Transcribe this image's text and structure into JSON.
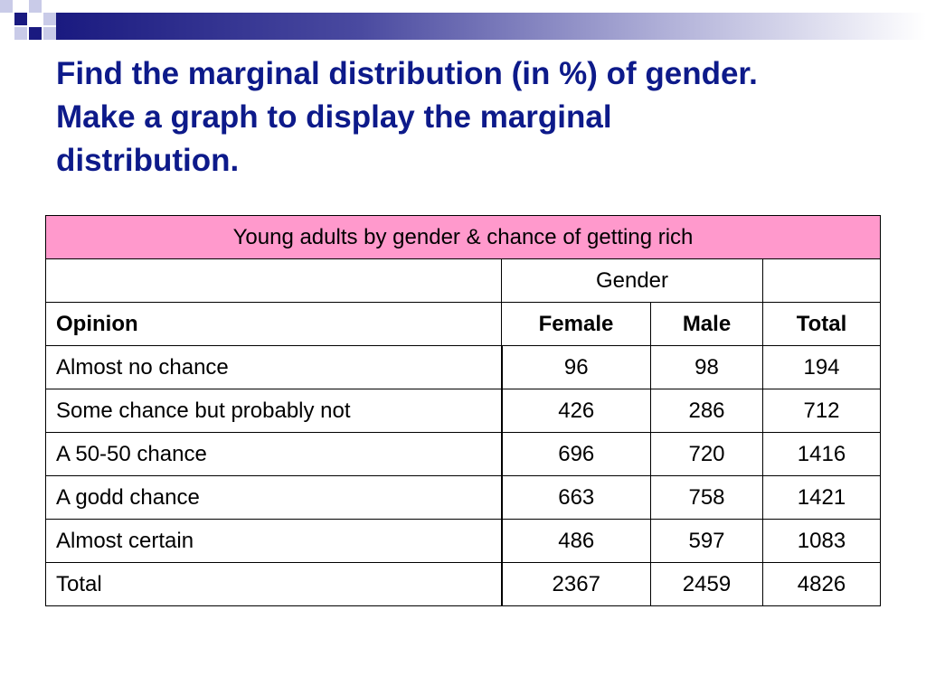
{
  "title": {
    "line1": "Find the marginal distribution (in %) of gender.",
    "line2": "Make a graph to display the marginal",
    "line3": "distribution."
  },
  "table": {
    "caption": "Young adults by gender & chance of getting rich",
    "group_header": "Gender",
    "columns": [
      "Opinion",
      "Female",
      "Male",
      "Total"
    ],
    "rows": [
      {
        "opinion": "Almost no chance",
        "female": "96",
        "male": "98",
        "total": "194"
      },
      {
        "opinion": "Some chance but probably not",
        "female": "426",
        "male": "286",
        "total": "712"
      },
      {
        "opinion": "A 50-50 chance",
        "female": "696",
        "male": "720",
        "total": "1416"
      },
      {
        "opinion": "A godd chance",
        "female": "663",
        "male": "758",
        "total": "1421"
      },
      {
        "opinion": "Almost certain",
        "female": "486",
        "male": "597",
        "total": "1083"
      },
      {
        "opinion": "Total",
        "female": "2367",
        "male": "2459",
        "total": "4826"
      }
    ]
  },
  "colors": {
    "title": "#0d1a8a",
    "caption_background": "#ff99cc",
    "accent": "#1a1a80"
  }
}
